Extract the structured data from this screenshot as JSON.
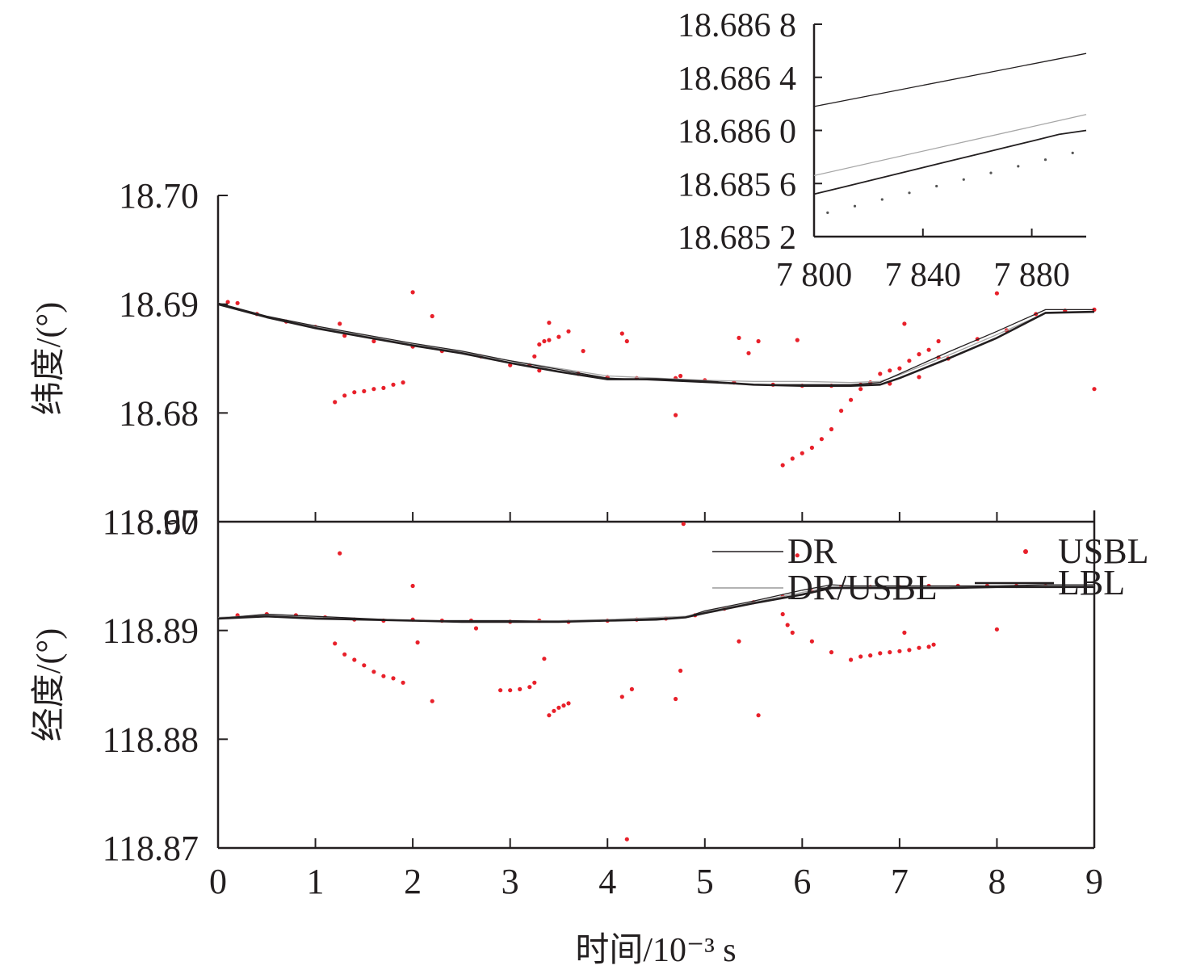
{
  "chart_data": {
    "type": "line",
    "xlabel": "时间/10⁻³ s",
    "xlim": [
      0,
      9
    ],
    "xticks": [
      "0",
      "1",
      "2",
      "3",
      "4",
      "5",
      "6",
      "7",
      "8",
      "9"
    ],
    "legend": {
      "entries": [
        {
          "name": "DR",
          "style": "line",
          "color": "#231f20"
        },
        {
          "name": "USBL",
          "style": "points",
          "color": "#e8202a"
        },
        {
          "name": "DR/USBL",
          "style": "line",
          "color": "#9a9a9a"
        },
        {
          "name": "LBL",
          "style": "line",
          "color": "#231f20"
        }
      ]
    },
    "panels": [
      {
        "ylabel": "纬度/(°)",
        "ylim": [
          18.67,
          18.7
        ],
        "yticks": [
          "18.67",
          "18.68",
          "18.69",
          "18.70"
        ],
        "series": [
          {
            "name": "DR",
            "x": [
              0,
              0.5,
              1,
              1.5,
              2,
              2.5,
              3,
              3.5,
              4,
              4.5,
              5,
              5.5,
              6,
              6.5,
              6.8,
              7,
              7.5,
              8,
              8.5,
              9
            ],
            "y": [
              18.6901,
              18.6889,
              18.688,
              18.6872,
              18.6864,
              18.6857,
              18.6848,
              18.684,
              18.6832,
              18.683,
              18.6828,
              18.6826,
              18.6826,
              18.6826,
              18.6828,
              18.6836,
              18.6856,
              18.6875,
              18.6895,
              18.6895
            ]
          },
          {
            "name": "DR/USBL",
            "x": [
              0,
              0.5,
              1,
              1.5,
              2,
              2.5,
              3,
              3.5,
              4,
              4.5,
              5,
              5.5,
              6,
              6.5,
              6.8,
              7,
              7.5,
              8,
              8.5,
              9
            ],
            "y": [
              18.6901,
              18.6889,
              18.6879,
              18.6871,
              18.6863,
              18.6856,
              18.6848,
              18.6841,
              18.6834,
              18.6832,
              18.683,
              18.6829,
              18.6829,
              18.6828,
              18.6829,
              18.6835,
              18.6853,
              18.6872,
              18.6892,
              18.6893
            ]
          },
          {
            "name": "LBL",
            "x": [
              0,
              0.5,
              1,
              1.5,
              2,
              2.5,
              3,
              3.5,
              4,
              4.5,
              5,
              5.5,
              6,
              6.5,
              6.8,
              7,
              7.5,
              8,
              8.5,
              9
            ],
            "y": [
              18.69,
              18.6888,
              18.6878,
              18.687,
              18.6862,
              18.6855,
              18.6846,
              18.6838,
              18.6831,
              18.6831,
              18.6829,
              18.6826,
              18.6825,
              18.6825,
              18.6826,
              18.6832,
              18.685,
              18.6869,
              18.6892,
              18.6893
            ]
          },
          {
            "name": "USBL",
            "x": [
              0.1,
              0.2,
              0.4,
              0.7,
              1,
              1.3,
              1.6,
              2,
              2.3,
              2.7,
              3,
              3.3,
              3.7,
              4,
              4.3,
              4.7,
              5,
              5.3,
              5.7,
              6,
              6.3,
              6.6,
              6.9,
              7.2,
              7.5,
              7.8,
              8.1,
              8.4,
              8.7,
              9,
              1.2,
              1.3,
              1.4,
              1.5,
              1.6,
              1.7,
              1.8,
              1.9,
              3.2,
              3.25,
              3.3,
              3.35,
              3.4,
              3.5,
              3.6,
              5.8,
              5.9,
              6.0,
              6.1,
              6.2,
              6.3,
              6.4,
              6.5,
              6.6,
              6.7,
              6.8,
              6.9,
              7.0,
              7.1,
              7.2,
              7.3,
              7.4,
              1.25,
              2.0,
              2.2,
              4.15,
              4.2,
              4.7,
              4.75,
              5.35,
              5.45,
              5.55,
              5.95,
              7.05,
              7.4,
              8.0,
              9.0,
              3.4,
              3.75
            ],
            "y": [
              18.6902,
              18.6901,
              18.6891,
              18.6884,
              18.6879,
              18.6871,
              18.6866,
              18.6861,
              18.6857,
              18.6852,
              18.6844,
              18.6839,
              18.6836,
              18.6833,
              18.6832,
              18.6832,
              18.683,
              18.6828,
              18.6826,
              18.6825,
              18.6825,
              18.6826,
              18.6827,
              18.6833,
              18.685,
              18.6868,
              18.6876,
              18.6891,
              18.6894,
              18.6895,
              18.681,
              18.6816,
              18.6819,
              18.682,
              18.6822,
              18.6823,
              18.6826,
              18.6828,
              18.6844,
              18.6852,
              18.6863,
              18.6866,
              18.6867,
              18.687,
              18.6875,
              18.6752,
              18.6758,
              18.6763,
              18.6768,
              18.6776,
              18.6785,
              18.6802,
              18.6812,
              18.6822,
              18.6828,
              18.6836,
              18.6839,
              18.6841,
              18.6848,
              18.6854,
              18.6858,
              18.6866,
              18.6882,
              18.6911,
              18.6889,
              18.6873,
              18.6866,
              18.6798,
              18.6834,
              18.6869,
              18.6855,
              18.6866,
              18.6867,
              18.6882,
              18.6851,
              18.691,
              18.6822,
              18.6883,
              18.6857
            ]
          }
        ]
      },
      {
        "ylabel": "经度/(°)",
        "ylim": [
          118.87,
          118.9
        ],
        "yticks": [
          "118.87",
          "118.88",
          "118.89",
          "118.90"
        ],
        "series": [
          {
            "name": "DR",
            "x": [
              0,
              0.5,
              1,
              1.5,
              2,
              2.5,
              3,
              3.5,
              4,
              4.5,
              4.8,
              5,
              5.5,
              6,
              6.3,
              6.5,
              7,
              7.5,
              8,
              8.5,
              9
            ],
            "y": [
              118.8911,
              118.8915,
              118.8913,
              118.8911,
              118.8909,
              118.8909,
              118.8909,
              118.8908,
              118.8909,
              118.8911,
              118.8912,
              118.8918,
              118.8927,
              118.8937,
              118.8942,
              118.8941,
              118.8941,
              118.8941,
              118.8941,
              118.8942,
              118.8942
            ]
          },
          {
            "name": "DR/USBL",
            "x": [
              0,
              0.5,
              1,
              1.5,
              2,
              2.5,
              3,
              3.5,
              4,
              4.5,
              4.8,
              5,
              5.5,
              6,
              6.3,
              6.5,
              7,
              7.5,
              8,
              8.5,
              9
            ],
            "y": [
              118.8912,
              118.8914,
              118.8912,
              118.891,
              118.8909,
              118.8909,
              118.8909,
              118.8909,
              118.891,
              118.8912,
              118.8913,
              118.8917,
              118.8926,
              118.8935,
              118.894,
              118.894,
              118.894,
              118.894,
              118.8941,
              118.8941,
              118.8941
            ]
          },
          {
            "name": "LBL",
            "x": [
              0,
              0.5,
              1,
              1.5,
              2,
              2.5,
              3,
              3.5,
              4,
              4.5,
              4.8,
              5,
              5.5,
              6,
              6.3,
              6.5,
              7,
              7.5,
              8,
              8.5,
              9
            ],
            "y": [
              118.8911,
              118.8913,
              118.8911,
              118.891,
              118.8909,
              118.8908,
              118.8908,
              118.8908,
              118.8909,
              118.891,
              118.8912,
              118.8916,
              118.8925,
              118.8933,
              118.8939,
              118.8939,
              118.8939,
              118.8939,
              118.894,
              118.894,
              118.894
            ]
          },
          {
            "name": "USBL",
            "x": [
              0.2,
              0.5,
              0.8,
              1.1,
              1.4,
              1.7,
              2.0,
              2.3,
              2.6,
              3.0,
              3.3,
              3.6,
              4.0,
              4.3,
              4.6,
              4.9,
              5.2,
              5.5,
              5.8,
              6.1,
              6.4,
              6.7,
              7.0,
              7.3,
              7.6,
              7.9,
              8.2,
              8.5,
              1.2,
              1.3,
              1.4,
              1.5,
              1.6,
              1.7,
              1.8,
              1.9,
              2.9,
              3.0,
              3.1,
              3.2,
              3.25,
              3.4,
              3.45,
              3.5,
              3.55,
              3.6,
              5.8,
              5.85,
              5.9,
              6.1,
              6.3,
              6.5,
              6.6,
              6.7,
              6.8,
              6.9,
              7.0,
              7.1,
              7.2,
              7.3,
              7.35,
              1.25,
              2.0,
              2.05,
              2.2,
              2.65,
              3.35,
              4.15,
              4.2,
              4.25,
              4.7,
              4.75,
              4.78,
              5.35,
              5.55,
              5.95,
              7.05,
              8.0
            ],
            "y": [
              118.8914,
              118.8915,
              118.8914,
              118.8912,
              118.891,
              118.8909,
              118.891,
              118.8909,
              118.8909,
              118.8908,
              118.8909,
              118.8908,
              118.8909,
              118.891,
              118.8911,
              118.8914,
              118.892,
              118.8926,
              118.8931,
              118.8936,
              118.894,
              118.894,
              118.894,
              118.8941,
              118.8941,
              118.8941,
              118.8941,
              118.8941,
              118.8888,
              118.8878,
              118.8873,
              118.8868,
              118.8862,
              118.8858,
              118.8856,
              118.8852,
              118.8845,
              118.8845,
              118.8846,
              118.8848,
              118.8852,
              118.8822,
              118.8826,
              118.8829,
              118.8831,
              118.8833,
              118.8915,
              118.8905,
              118.8898,
              118.889,
              118.888,
              118.8873,
              118.8876,
              118.8877,
              118.8879,
              118.888,
              118.8881,
              118.8882,
              118.8884,
              118.8885,
              118.8887,
              118.8971,
              118.8941,
              118.8889,
              118.8835,
              118.8902,
              118.8874,
              118.8839,
              118.8708,
              118.8846,
              118.8837,
              118.8863,
              118.8998,
              118.889,
              118.8822,
              118.8969,
              118.8898,
              118.8901
            ]
          }
        ]
      }
    ],
    "inset": {
      "xlim": [
        7800,
        7900
      ],
      "xticks": [
        "7 800",
        "7 840",
        "7 880"
      ],
      "ylim": [
        18.6852,
        18.6868
      ],
      "yticks": [
        "18.685 2",
        "18.685 6",
        "18.686 0",
        "18.686 4",
        "18.686 8"
      ],
      "series": [
        {
          "name": "DR",
          "x": [
            7800,
            7900
          ],
          "y": [
            18.68618,
            18.68658
          ]
        },
        {
          "name": "DR/USBL",
          "x": [
            7800,
            7900
          ],
          "y": [
            18.68566,
            18.68612
          ]
        },
        {
          "name": "LBL",
          "x": [
            7800,
            7810,
            7820,
            7830,
            7840,
            7850,
            7860,
            7870,
            7880,
            7890,
            7900
          ],
          "y": [
            18.68552,
            18.68557,
            18.68562,
            18.68567,
            18.68572,
            18.68577,
            18.68582,
            18.68587,
            18.68592,
            18.68597,
            18.686
          ]
        },
        {
          "name": "USBL",
          "x": [
            7805,
            7815,
            7825,
            7835,
            7845,
            7855,
            7865,
            7875,
            7885,
            7895
          ],
          "y": [
            18.68538,
            18.68543,
            18.68548,
            18.68553,
            18.68558,
            18.68563,
            18.68568,
            18.68573,
            18.68578,
            18.68583
          ]
        }
      ]
    }
  }
}
